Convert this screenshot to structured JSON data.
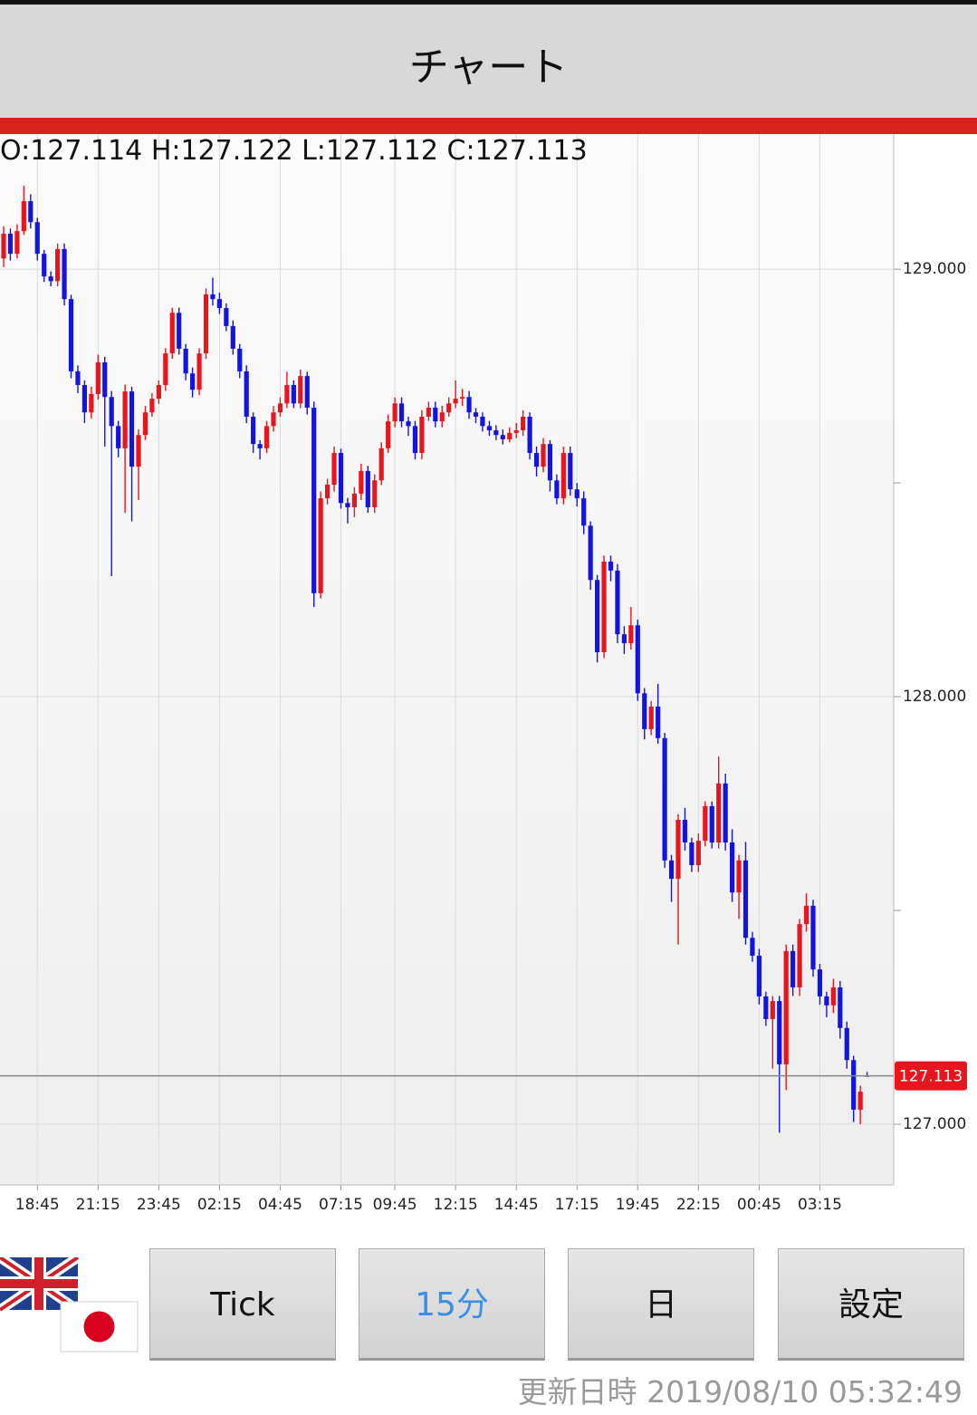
{
  "header": {
    "title": "チャート"
  },
  "ohlc_header": {
    "labels": [
      "O:",
      "H:",
      "L:",
      "C:"
    ]
  },
  "chart_data": {
    "type": "candlestick",
    "categories": [
      null,
      null,
      null,
      null,
      null,
      "18:45",
      null,
      null,
      null,
      null,
      null,
      null,
      null,
      null,
      "21:15",
      null,
      null,
      null,
      null,
      null,
      null,
      null,
      null,
      "23:45",
      null,
      null,
      null,
      null,
      null,
      null,
      null,
      null,
      "02:15",
      null,
      null,
      null,
      null,
      null,
      null,
      null,
      null,
      "04:45",
      null,
      null,
      null,
      null,
      null,
      null,
      null,
      null,
      "07:15",
      null,
      null,
      null,
      null,
      null,
      null,
      null,
      "09:45",
      null,
      null,
      null,
      null,
      null,
      null,
      null,
      null,
      "12:15",
      null,
      null,
      null,
      null,
      null,
      null,
      null,
      null,
      "14:45",
      null,
      null,
      null,
      null,
      null,
      null,
      null,
      null,
      "17:15",
      null,
      null,
      null,
      null,
      null,
      null,
      null,
      null,
      "19:45",
      null,
      null,
      null,
      null,
      null,
      null,
      null,
      null,
      "22:15",
      null,
      null,
      null,
      null,
      null,
      null,
      null,
      null,
      "00:45",
      null,
      null,
      null,
      null,
      null,
      null,
      null,
      null,
      "03:15",
      null,
      null,
      null,
      null,
      null,
      null,
      null
    ],
    "open": [
      129.025,
      129.083,
      129.036,
      129.089,
      129.159,
      129.11,
      129.036,
      128.983,
      128.972,
      129.047,
      128.93,
      128.761,
      128.729,
      128.665,
      128.708,
      128.782,
      128.701,
      128.633,
      128.581,
      128.714,
      128.538,
      128.612,
      128.665,
      128.697,
      128.729,
      128.803,
      128.898,
      128.814,
      128.756,
      128.718,
      128.803,
      128.941,
      128.93,
      128.909,
      128.867,
      128.814,
      128.761,
      128.655,
      128.591,
      128.581,
      128.633,
      128.665,
      128.686,
      128.729,
      128.686,
      128.75,
      128.676,
      128.242,
      128.464,
      128.496,
      128.57,
      128.453,
      128.443,
      128.475,
      128.528,
      128.443,
      128.506,
      128.581,
      128.644,
      128.686,
      128.644,
      128.633,
      128.57,
      128.655,
      128.676,
      128.644,
      128.665,
      128.686,
      128.697,
      128.701,
      128.665,
      128.655,
      128.633,
      128.623,
      128.612,
      128.602,
      128.617,
      128.623,
      128.655,
      128.57,
      128.538,
      128.591,
      128.506,
      128.464,
      128.57,
      128.485,
      128.464,
      128.4,
      128.273,
      128.104,
      128.316,
      128.295,
      128.146,
      128.125,
      128.167,
      128.008,
      127.924,
      127.977,
      127.903,
      127.617,
      127.574,
      127.712,
      127.659,
      127.606,
      127.663,
      127.744,
      127.659,
      127.797,
      127.659,
      127.542,
      127.617,
      127.436,
      127.394,
      127.299,
      127.246,
      127.288,
      127.14,
      127.405,
      127.32,
      127.468,
      127.511,
      127.362,
      127.299,
      127.278,
      127.32,
      127.225,
      127.15,
      127.034,
      127.114
    ],
    "high": [
      129.1,
      129.095,
      129.105,
      129.195,
      129.175,
      129.12,
      129.045,
      128.995,
      129.06,
      129.06,
      128.94,
      128.775,
      128.74,
      128.725,
      128.8,
      128.795,
      128.715,
      128.645,
      128.73,
      128.725,
      128.625,
      128.68,
      128.71,
      128.74,
      128.815,
      128.91,
      128.91,
      128.825,
      128.77,
      128.815,
      128.955,
      128.98,
      128.945,
      128.92,
      128.88,
      128.825,
      128.775,
      128.665,
      128.6,
      128.645,
      128.68,
      128.7,
      128.76,
      128.74,
      128.765,
      128.76,
      128.69,
      128.48,
      128.51,
      128.585,
      128.58,
      128.465,
      128.49,
      128.545,
      128.54,
      128.52,
      128.595,
      128.66,
      128.7,
      128.7,
      128.655,
      128.645,
      128.67,
      128.69,
      128.69,
      128.68,
      128.7,
      128.74,
      128.72,
      128.715,
      128.675,
      128.665,
      128.645,
      128.635,
      128.625,
      128.63,
      128.64,
      128.67,
      128.665,
      128.585,
      128.605,
      128.6,
      128.52,
      128.585,
      128.585,
      128.5,
      128.48,
      128.41,
      128.285,
      128.33,
      128.33,
      128.31,
      128.165,
      128.21,
      128.18,
      128.02,
      127.99,
      128.03,
      127.915,
      127.63,
      127.725,
      127.74,
      127.67,
      127.68,
      127.755,
      127.755,
      127.86,
      127.82,
      127.69,
      127.63,
      127.66,
      127.45,
      127.41,
      127.31,
      127.3,
      127.3,
      127.42,
      127.42,
      127.48,
      127.54,
      127.525,
      127.375,
      127.31,
      127.34,
      127.335,
      127.24,
      127.16,
      127.09,
      127.122
    ],
    "low": [
      129.005,
      129.02,
      129.025,
      129.08,
      129.095,
      129.02,
      128.97,
      128.96,
      128.96,
      128.915,
      128.745,
      128.71,
      128.64,
      128.65,
      128.695,
      128.585,
      128.282,
      128.56,
      128.43,
      128.41,
      128.46,
      128.6,
      128.655,
      128.685,
      128.715,
      128.79,
      128.8,
      128.74,
      128.7,
      128.705,
      128.79,
      128.915,
      128.895,
      128.855,
      128.8,
      128.745,
      128.64,
      128.57,
      128.555,
      128.57,
      128.62,
      128.655,
      128.675,
      128.675,
      128.675,
      128.66,
      128.21,
      128.23,
      128.45,
      128.48,
      128.44,
      128.405,
      128.42,
      128.46,
      128.43,
      128.43,
      128.495,
      128.57,
      128.63,
      128.63,
      128.61,
      128.555,
      128.555,
      128.645,
      128.63,
      128.63,
      128.655,
      128.675,
      128.68,
      128.65,
      128.64,
      128.62,
      128.61,
      128.6,
      128.59,
      128.595,
      128.605,
      128.61,
      128.555,
      128.515,
      128.525,
      128.48,
      128.45,
      128.45,
      128.47,
      128.445,
      128.38,
      128.25,
      128.08,
      128.09,
      128.27,
      128.125,
      128.1,
      128.11,
      127.99,
      127.9,
      127.91,
      127.89,
      127.6,
      127.52,
      127.42,
      127.64,
      127.59,
      127.59,
      127.65,
      127.645,
      127.645,
      127.64,
      127.52,
      127.48,
      127.42,
      127.38,
      127.28,
      127.23,
      127.13,
      126.98,
      127.08,
      127.3,
      127.3,
      127.45,
      127.345,
      127.28,
      127.25,
      127.26,
      127.2,
      127.13,
      127.005,
      127.0,
      127.112
    ],
    "close": [
      129.083,
      129.036,
      129.089,
      129.159,
      129.11,
      129.036,
      128.983,
      128.972,
      129.047,
      128.93,
      128.761,
      128.729,
      128.665,
      128.708,
      128.782,
      128.701,
      128.633,
      128.581,
      128.714,
      128.538,
      128.612,
      128.665,
      128.697,
      128.729,
      128.803,
      128.898,
      128.814,
      128.756,
      128.718,
      128.803,
      128.941,
      128.93,
      128.909,
      128.867,
      128.814,
      128.761,
      128.655,
      128.591,
      128.581,
      128.633,
      128.665,
      128.686,
      128.729,
      128.686,
      128.75,
      128.676,
      128.242,
      128.464,
      128.496,
      128.57,
      128.453,
      128.443,
      128.475,
      128.528,
      128.443,
      128.506,
      128.581,
      128.644,
      128.686,
      128.644,
      128.633,
      128.57,
      128.655,
      128.676,
      128.644,
      128.665,
      128.686,
      128.697,
      128.701,
      128.665,
      128.655,
      128.633,
      128.623,
      128.612,
      128.602,
      128.617,
      128.623,
      128.655,
      128.57,
      128.538,
      128.591,
      128.506,
      128.464,
      128.57,
      128.485,
      128.464,
      128.4,
      128.273,
      128.104,
      128.316,
      128.295,
      128.146,
      128.125,
      128.167,
      128.008,
      127.924,
      127.977,
      127.903,
      127.617,
      127.574,
      127.712,
      127.659,
      127.606,
      127.663,
      127.744,
      127.659,
      127.797,
      127.659,
      127.542,
      127.617,
      127.436,
      127.394,
      127.299,
      127.246,
      127.288,
      127.14,
      127.405,
      127.32,
      127.468,
      127.511,
      127.362,
      127.299,
      127.278,
      127.32,
      127.225,
      127.15,
      127.034,
      127.076,
      127.113
    ],
    "up_color": "#e8141e",
    "down_color": "#1414e0",
    "ylim": [
      126.858,
      129.316
    ],
    "yticks": [
      {
        "value": 129,
        "label": "129.000"
      },
      {
        "value": 128,
        "label": "128.000"
      },
      {
        "value": 127,
        "label": "127.000"
      }
    ],
    "minor_yticks": [
      128.5,
      127.5
    ],
    "grid": true,
    "last_price_line": true,
    "last_price_color": "#e8141e"
  },
  "buttons": [
    {
      "label": "Tick"
    },
    {
      "label": "15分"
    },
    {
      "label": "日"
    },
    {
      "label": "設定"
    }
  ],
  "footer": {
    "label": "更新日時",
    "timestamp": "2019/08/10 05:32:49"
  }
}
